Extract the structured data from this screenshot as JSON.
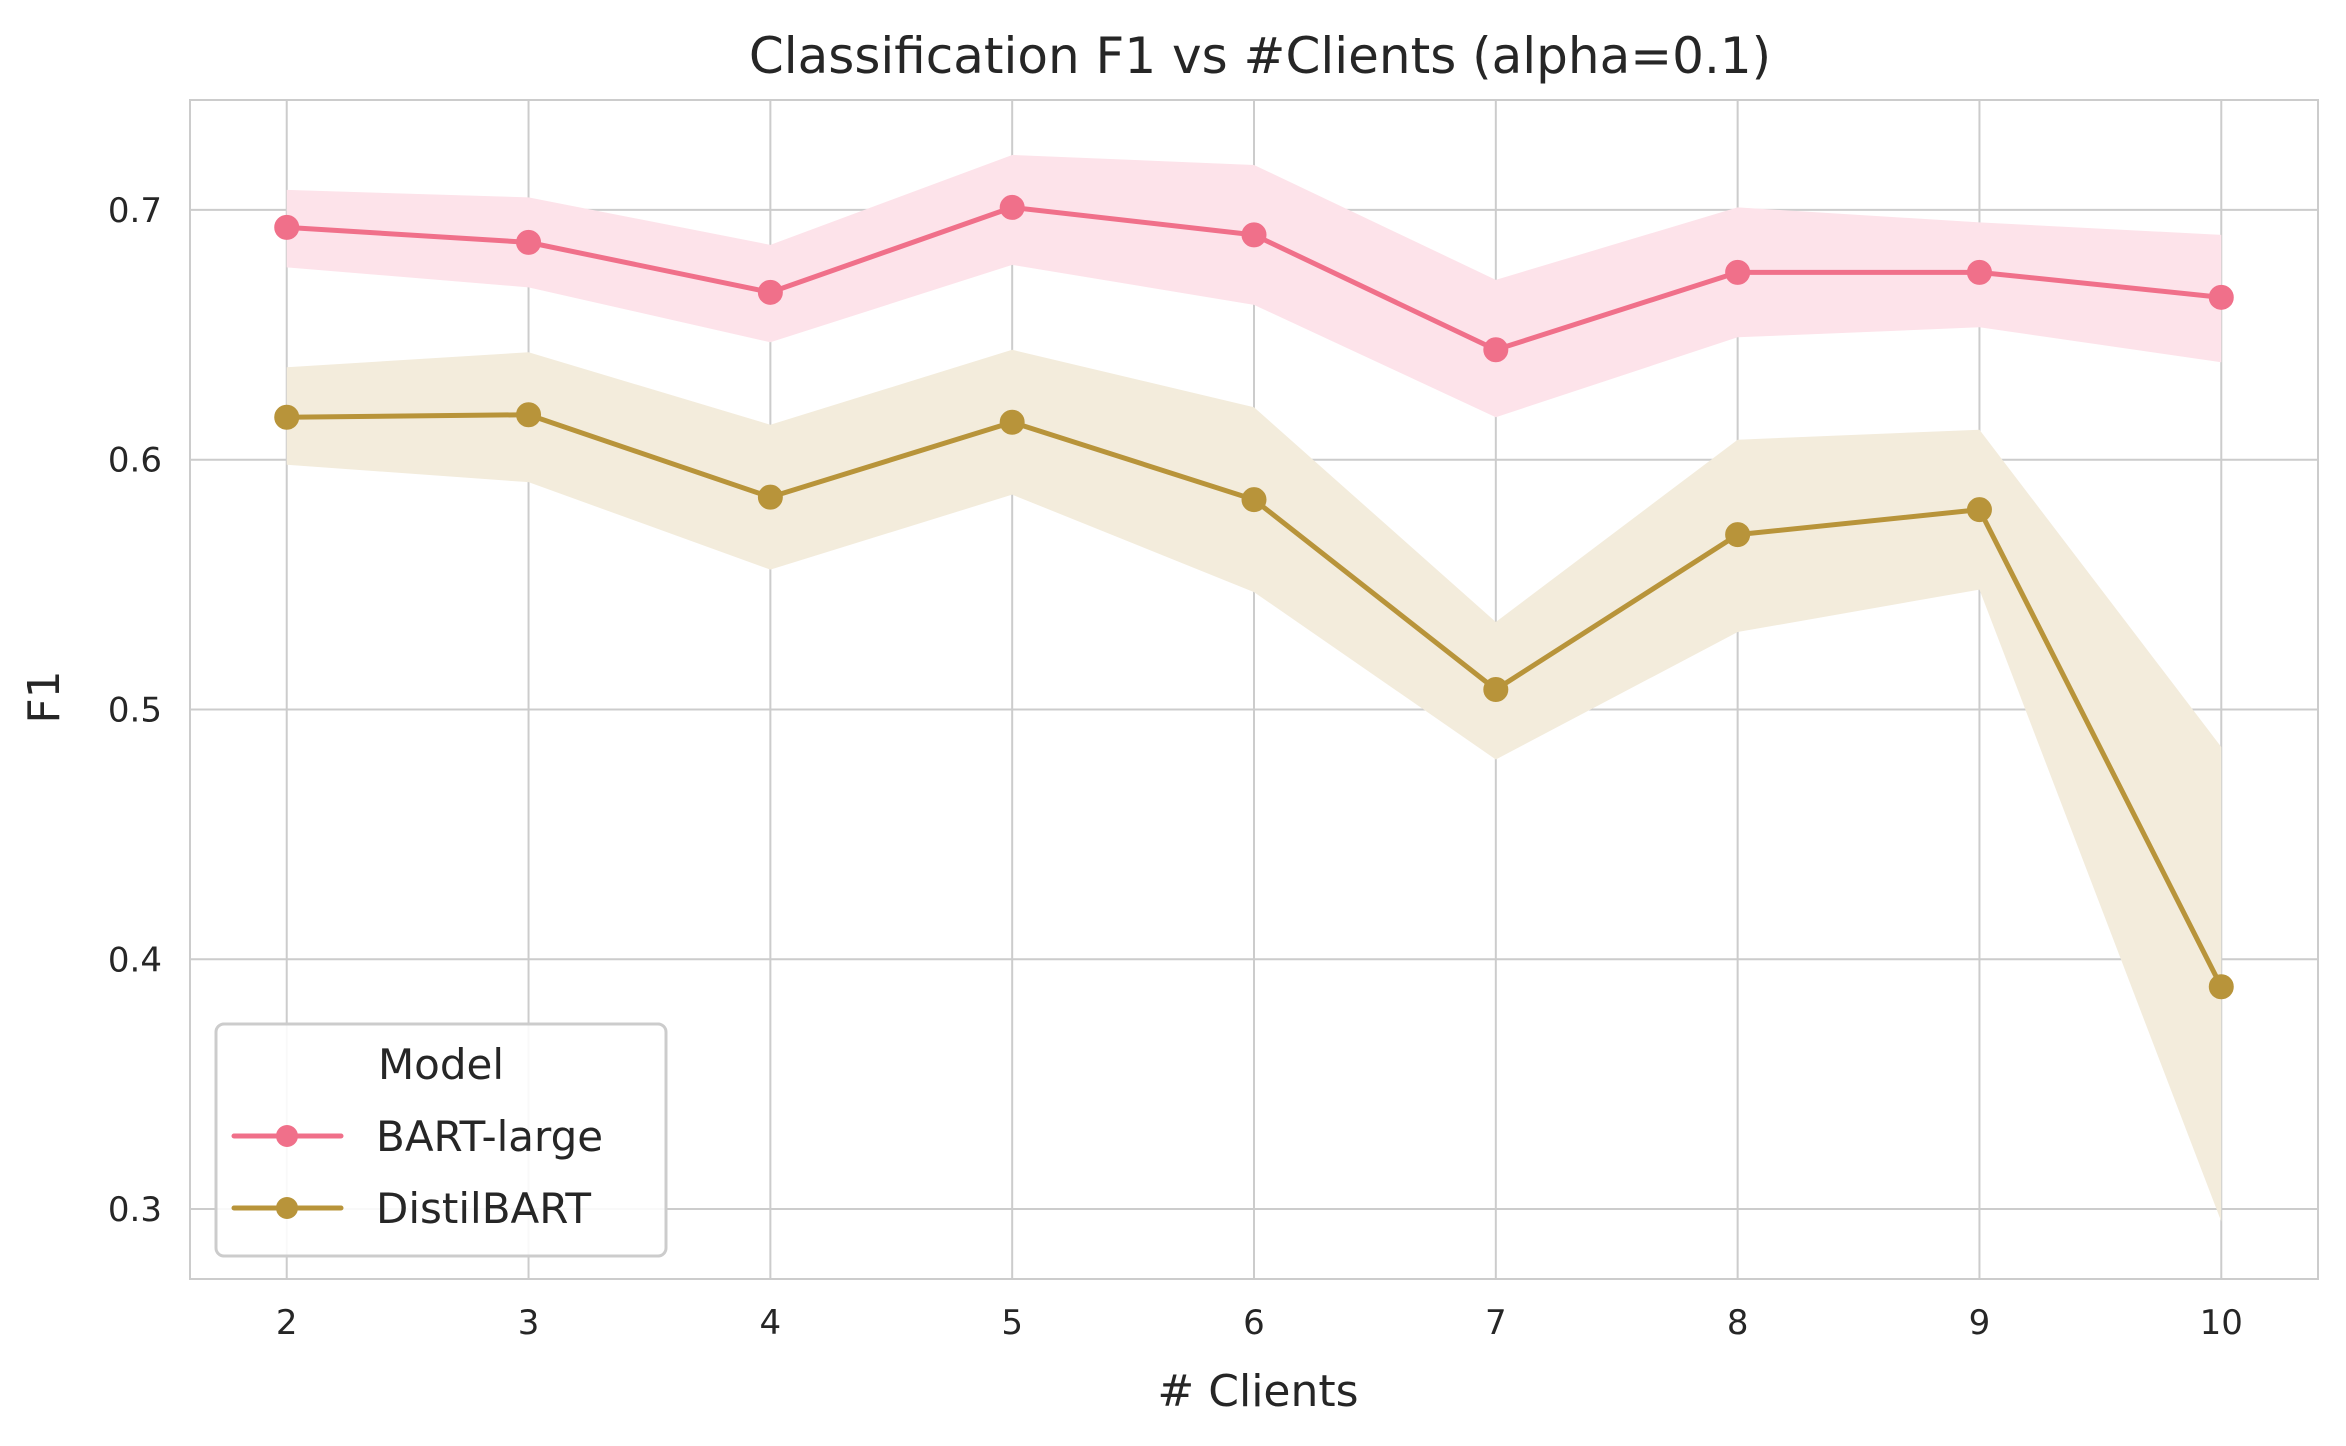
{
  "chart_data": {
    "type": "line",
    "title": "Classification F1 vs #Clients (alpha=0.1)",
    "xlabel": "# Clients",
    "ylabel": "F1",
    "x": [
      2,
      3,
      4,
      5,
      6,
      7,
      8,
      9,
      10
    ],
    "x_ticks": [
      "2",
      "3",
      "4",
      "5",
      "6",
      "7",
      "8",
      "9",
      "10"
    ],
    "y_ticks": [
      "0.3",
      "0.4",
      "0.5",
      "0.6",
      "0.7"
    ],
    "xlim": [
      1.6,
      10.4
    ],
    "ylim": [
      0.272,
      0.744
    ],
    "grid": true,
    "legend": {
      "title": "Model",
      "placement": "lower-left"
    },
    "series": [
      {
        "name": "BART-large",
        "color": "#f0708a",
        "band_color": "#fde3ea",
        "values": [
          0.693,
          0.687,
          0.667,
          0.701,
          0.69,
          0.644,
          0.675,
          0.675,
          0.665
        ],
        "lower": [
          0.677,
          0.669,
          0.647,
          0.678,
          0.662,
          0.617,
          0.649,
          0.653,
          0.639
        ],
        "upper": [
          0.708,
          0.705,
          0.686,
          0.722,
          0.718,
          0.672,
          0.701,
          0.695,
          0.69
        ]
      },
      {
        "name": "DistilBART",
        "color": "#b8943a",
        "band_color": "#f3ecdc",
        "values": [
          0.617,
          0.618,
          0.585,
          0.615,
          0.584,
          0.508,
          0.57,
          0.58,
          0.389
        ],
        "lower": [
          0.598,
          0.591,
          0.556,
          0.586,
          0.547,
          0.48,
          0.531,
          0.548,
          0.295
        ],
        "upper": [
          0.637,
          0.643,
          0.614,
          0.644,
          0.621,
          0.535,
          0.608,
          0.612,
          0.485
        ]
      }
    ]
  }
}
